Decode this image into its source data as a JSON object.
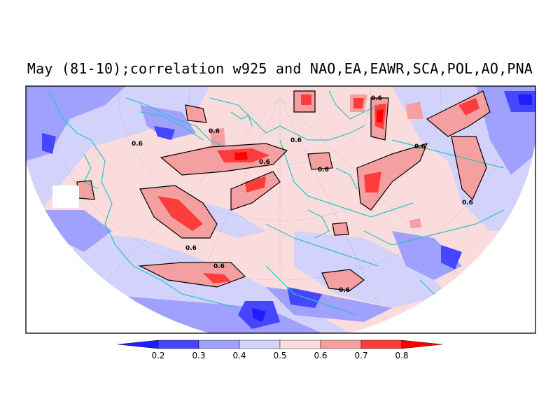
{
  "title": "May (81-10);correlation w925 and NAO,EA,EAWR,SCA,POL,AO,PNA",
  "contour_label": "0.6",
  "colors": {
    "background": "#ffffff",
    "frame": "#000000",
    "coast": "#2ec4c4",
    "contour": "#000000",
    "levels": [
      "#1e1eff",
      "#4646ff",
      "#a0a0ff",
      "#d2d2fa",
      "#fadcdc",
      "#f5a0a0",
      "#ff3c3c",
      "#ff0000"
    ]
  },
  "legend": {
    "ticks": [
      "0.2",
      "0.3",
      "0.4",
      "0.5",
      "0.6",
      "0.7",
      "0.8"
    ]
  }
}
